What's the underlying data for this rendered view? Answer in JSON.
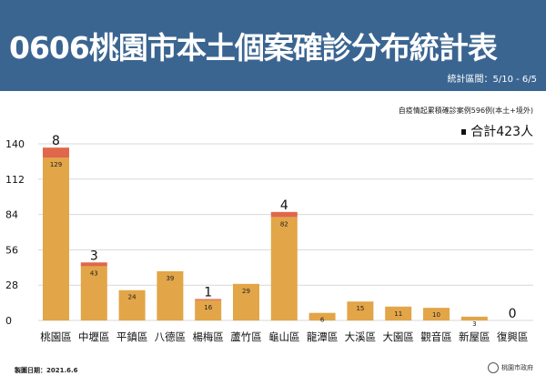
{
  "header": {
    "title": "0606桃園市本土個案確診分布統計表",
    "range": "統計區間：5/10 - 6/5"
  },
  "note": "自疫情起累積確診案例596例(本土+境外)",
  "total": "合計423人",
  "footer": {
    "date": "製圖日期：2021.6.6",
    "logo": "桃園市政府"
  },
  "colors": {
    "header": "#3b6591",
    "base": "#e2a548",
    "top": "#e0674a"
  },
  "chart_data": {
    "type": "bar",
    "stacked": true,
    "categories": [
      "桃園區",
      "中壢區",
      "平鎮區",
      "八德區",
      "楊梅區",
      "蘆竹區",
      "龜山區",
      "龍潭區",
      "大溪區",
      "大園區",
      "觀音區",
      "新屋區",
      "復興區"
    ],
    "series": [
      {
        "values": [
          129,
          43,
          24,
          39,
          16,
          29,
          82,
          6,
          15,
          11,
          10,
          3,
          0
        ]
      },
      {
        "values": [
          8,
          3,
          0,
          0,
          1,
          0,
          4,
          0,
          0,
          0,
          0,
          0,
          0
        ]
      }
    ],
    "yticks": [
      0,
      28,
      56,
      84,
      112,
      140
    ],
    "ylim": [
      0,
      140
    ],
    "grid": true
  }
}
